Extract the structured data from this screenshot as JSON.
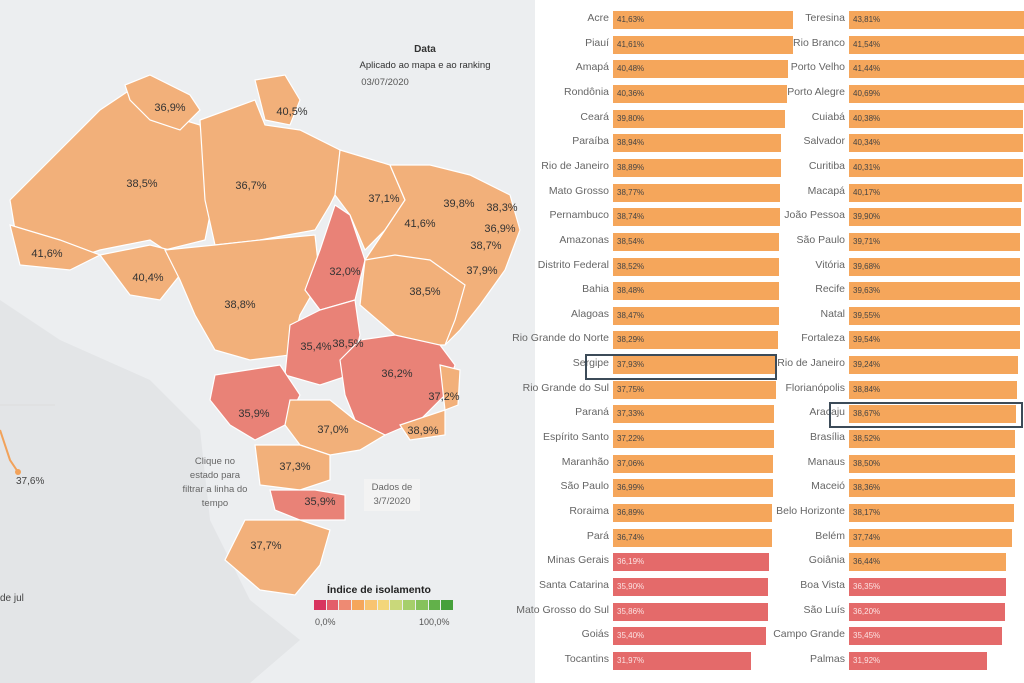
{
  "header": {
    "title": "Data",
    "subtitle": "Aplicado ao mapa e ao ranking",
    "date": "03/07/2020"
  },
  "map": {
    "state_labels": [
      "36,9%",
      "40,5%",
      "38,5%",
      "36,7%",
      "37,1%",
      "39,8%",
      "38,3%",
      "41,6%",
      "36,9%",
      "38,7%",
      "41,6%",
      "40,4%",
      "32,0%",
      "37,9%",
      "38,5%",
      "38,8%",
      "35,4%",
      "38,5%",
      "36,2%",
      "35,9%",
      "37,2%",
      "37,0%",
      "38,9%",
      "37,3%",
      "35,9%",
      "37,7%"
    ],
    "hint": "Clique no estado para filtrar a linha do tempo",
    "tooltip": "Dados de 3/7/2020",
    "side_value": "37,6%",
    "side_date": "de jul"
  },
  "legend": {
    "title": "Índice de isolamento",
    "min": "0,0%",
    "max": "100,0%",
    "colors": [
      "#d8345f",
      "#e35d6a",
      "#ee8a73",
      "#f5a65b",
      "#f8c471",
      "#f3d67a",
      "#c9d87a",
      "#a6cf6b",
      "#86c25c",
      "#62b14a",
      "#46a03b"
    ]
  },
  "ranking_states": [
    {
      "name": "Acre",
      "value": "41,63%",
      "pct": 41.63,
      "color": "orange"
    },
    {
      "name": "Piauí",
      "value": "41,61%",
      "pct": 41.61,
      "color": "orange"
    },
    {
      "name": "Amapá",
      "value": "40,48%",
      "pct": 40.48,
      "color": "orange"
    },
    {
      "name": "Rondônia",
      "value": "40,36%",
      "pct": 40.36,
      "color": "orange"
    },
    {
      "name": "Ceará",
      "value": "39,80%",
      "pct": 39.8,
      "color": "orange"
    },
    {
      "name": "Paraíba",
      "value": "38,94%",
      "pct": 38.94,
      "color": "orange"
    },
    {
      "name": "Rio de Janeiro",
      "value": "38,89%",
      "pct": 38.89,
      "color": "orange"
    },
    {
      "name": "Mato Grosso",
      "value": "38,77%",
      "pct": 38.77,
      "color": "orange"
    },
    {
      "name": "Pernambuco",
      "value": "38,74%",
      "pct": 38.74,
      "color": "orange"
    },
    {
      "name": "Amazonas",
      "value": "38,54%",
      "pct": 38.54,
      "color": "orange"
    },
    {
      "name": "Distrito Federal",
      "value": "38,52%",
      "pct": 38.52,
      "color": "orange"
    },
    {
      "name": "Bahia",
      "value": "38,48%",
      "pct": 38.48,
      "color": "orange"
    },
    {
      "name": "Alagoas",
      "value": "38,47%",
      "pct": 38.47,
      "color": "orange"
    },
    {
      "name": "Rio Grande do Norte",
      "value": "38,29%",
      "pct": 38.29,
      "color": "orange"
    },
    {
      "name": "Sergipe",
      "value": "37,93%",
      "pct": 37.93,
      "color": "orange"
    },
    {
      "name": "Rio Grande do Sul",
      "value": "37,75%",
      "pct": 37.75,
      "color": "orange"
    },
    {
      "name": "Paraná",
      "value": "37,33%",
      "pct": 37.33,
      "color": "orange"
    },
    {
      "name": "Espírito Santo",
      "value": "37,22%",
      "pct": 37.22,
      "color": "orange"
    },
    {
      "name": "Maranhão",
      "value": "37,06%",
      "pct": 37.06,
      "color": "orange"
    },
    {
      "name": "São Paulo",
      "value": "36,99%",
      "pct": 36.99,
      "color": "orange"
    },
    {
      "name": "Roraima",
      "value": "36,89%",
      "pct": 36.89,
      "color": "orange"
    },
    {
      "name": "Pará",
      "value": "36,74%",
      "pct": 36.74,
      "color": "orange"
    },
    {
      "name": "Minas Gerais",
      "value": "36,19%",
      "pct": 36.19,
      "color": "red"
    },
    {
      "name": "Santa Catarina",
      "value": "35,90%",
      "pct": 35.9,
      "color": "red"
    },
    {
      "name": "Mato Grosso do Sul",
      "value": "35,86%",
      "pct": 35.86,
      "color": "red"
    },
    {
      "name": "Goiás",
      "value": "35,40%",
      "pct": 35.4,
      "color": "red"
    },
    {
      "name": "Tocantins",
      "value": "31,97%",
      "pct": 31.97,
      "color": "red"
    }
  ],
  "ranking_capitals": [
    {
      "name": "Teresina",
      "value": "43,81%",
      "pct": 43.81,
      "color": "orange"
    },
    {
      "name": "Rio Branco",
      "value": "41,54%",
      "pct": 41.54,
      "color": "orange"
    },
    {
      "name": "Porto Velho",
      "value": "41,44%",
      "pct": 41.44,
      "color": "orange"
    },
    {
      "name": "Porto Alegre",
      "value": "40,69%",
      "pct": 40.69,
      "color": "orange"
    },
    {
      "name": "Cuiabá",
      "value": "40,38%",
      "pct": 40.38,
      "color": "orange"
    },
    {
      "name": "Salvador",
      "value": "40,34%",
      "pct": 40.34,
      "color": "orange"
    },
    {
      "name": "Curitiba",
      "value": "40,31%",
      "pct": 40.31,
      "color": "orange"
    },
    {
      "name": "Macapá",
      "value": "40,17%",
      "pct": 40.17,
      "color": "orange"
    },
    {
      "name": "João Pessoa",
      "value": "39,90%",
      "pct": 39.9,
      "color": "orange"
    },
    {
      "name": "São Paulo",
      "value": "39,71%",
      "pct": 39.71,
      "color": "orange"
    },
    {
      "name": "Vitória",
      "value": "39,68%",
      "pct": 39.68,
      "color": "orange"
    },
    {
      "name": "Recife",
      "value": "39,63%",
      "pct": 39.63,
      "color": "orange"
    },
    {
      "name": "Natal",
      "value": "39,55%",
      "pct": 39.55,
      "color": "orange"
    },
    {
      "name": "Fortaleza",
      "value": "39,54%",
      "pct": 39.54,
      "color": "orange"
    },
    {
      "name": "Rio de Janeiro",
      "value": "39,24%",
      "pct": 39.24,
      "color": "orange"
    },
    {
      "name": "Florianópolis",
      "value": "38,84%",
      "pct": 38.84,
      "color": "orange"
    },
    {
      "name": "Aracaju",
      "value": "38,67%",
      "pct": 38.67,
      "color": "orange"
    },
    {
      "name": "Brasília",
      "value": "38,52%",
      "pct": 38.52,
      "color": "orange"
    },
    {
      "name": "Manaus",
      "value": "38,50%",
      "pct": 38.5,
      "color": "orange"
    },
    {
      "name": "Maceió",
      "value": "38,36%",
      "pct": 38.36,
      "color": "orange"
    },
    {
      "name": "Belo Horizonte",
      "value": "38,17%",
      "pct": 38.17,
      "color": "orange"
    },
    {
      "name": "Belém",
      "value": "37,74%",
      "pct": 37.74,
      "color": "orange"
    },
    {
      "name": "Goiânia",
      "value": "36,44%",
      "pct": 36.44,
      "color": "orange"
    },
    {
      "name": "Boa Vista",
      "value": "36,35%",
      "pct": 36.35,
      "color": "red"
    },
    {
      "name": "São Luís",
      "value": "36,20%",
      "pct": 36.2,
      "color": "red"
    },
    {
      "name": "Campo Grande",
      "value": "35,45%",
      "pct": 35.45,
      "color": "red"
    },
    {
      "name": "Palmas",
      "value": "31,92%",
      "pct": 31.92,
      "color": "red"
    }
  ],
  "highlight": {
    "states": "Sergipe",
    "capitals": "Aracaju"
  }
}
